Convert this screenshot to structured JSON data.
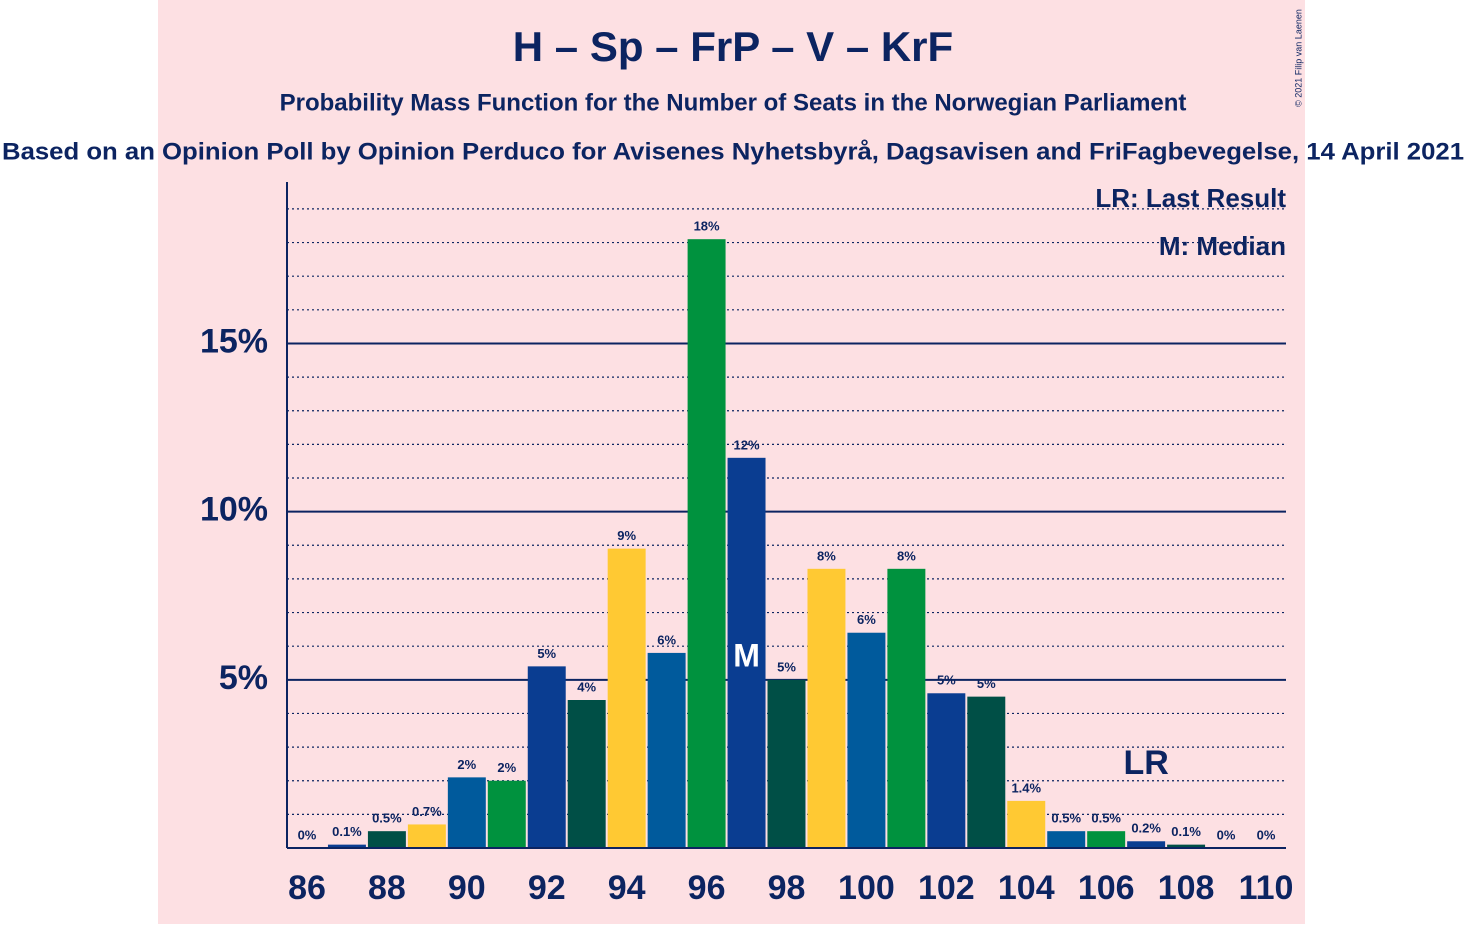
{
  "chart_data": {
    "type": "bar",
    "title": "H – Sp – FrP – V – KrF",
    "subtitle": "Probability Mass Function for the Number of Seats in the Norwegian Parliament",
    "source": "Based on an Opinion Poll by Opinion Perduco for Avisenes Nyhetsbyrå, Dagsavisen and FriFagbevegelse, 14 April 2021",
    "copyright": "© 2021 Filip van Laenen",
    "x": [
      86,
      87,
      88,
      89,
      90,
      91,
      92,
      93,
      94,
      95,
      96,
      97,
      98,
      99,
      100,
      101,
      102,
      103,
      104,
      105,
      106,
      107,
      108,
      109,
      110
    ],
    "values": [
      0,
      0.1,
      0.5,
      0.7,
      2.1,
      2.0,
      5.4,
      4.4,
      8.9,
      5.8,
      18.1,
      11.6,
      5.0,
      8.3,
      6.4,
      8.3,
      4.6,
      4.5,
      1.4,
      0.5,
      0.5,
      0.2,
      0.1,
      0,
      0
    ],
    "value_labels": [
      "0%",
      "0.1%",
      "0.5%",
      "0.7%",
      "2%",
      "2%",
      "5%",
      "4%",
      "9%",
      "6%",
      "18%",
      "12%",
      "5%",
      "8%",
      "6%",
      "8%",
      "5%",
      "5%",
      "1.4%",
      "0.5%",
      "0.5%",
      "0.2%",
      "0.1%",
      "0%",
      "0%"
    ],
    "colors": [
      "#0a3d91",
      "#0a3d91",
      "#004f46",
      "#ffc933",
      "#005a9c",
      "#00923e",
      "#0a3d91",
      "#004f46",
      "#ffc933",
      "#005a9c",
      "#00923e",
      "#0a3d91",
      "#004f46",
      "#ffc933",
      "#005a9c",
      "#00923e",
      "#0a3d91",
      "#004f46",
      "#ffc933",
      "#005a9c",
      "#00923e",
      "#0a3d91",
      "#004f46",
      "#ffc933",
      "#005a9c"
    ],
    "xlim": [
      85.5,
      110.5
    ],
    "xticks": [
      86,
      88,
      90,
      92,
      94,
      96,
      98,
      100,
      102,
      104,
      106,
      108,
      110
    ],
    "ylim": [
      0,
      19.8
    ],
    "yticks": [
      {
        "value": 5,
        "label": "5%"
      },
      {
        "value": 10,
        "label": "10%"
      },
      {
        "value": 15,
        "label": "15%"
      }
    ],
    "minor_yticks": [
      1,
      2,
      3,
      4,
      6,
      7,
      8,
      9,
      11,
      12,
      13,
      14,
      16,
      17,
      18,
      19
    ],
    "grid": true,
    "median": {
      "x": 97,
      "label": "M"
    },
    "last_result": {
      "x": 107,
      "label": "LR"
    },
    "legend": [
      "LR: Last Result",
      "M: Median"
    ]
  }
}
